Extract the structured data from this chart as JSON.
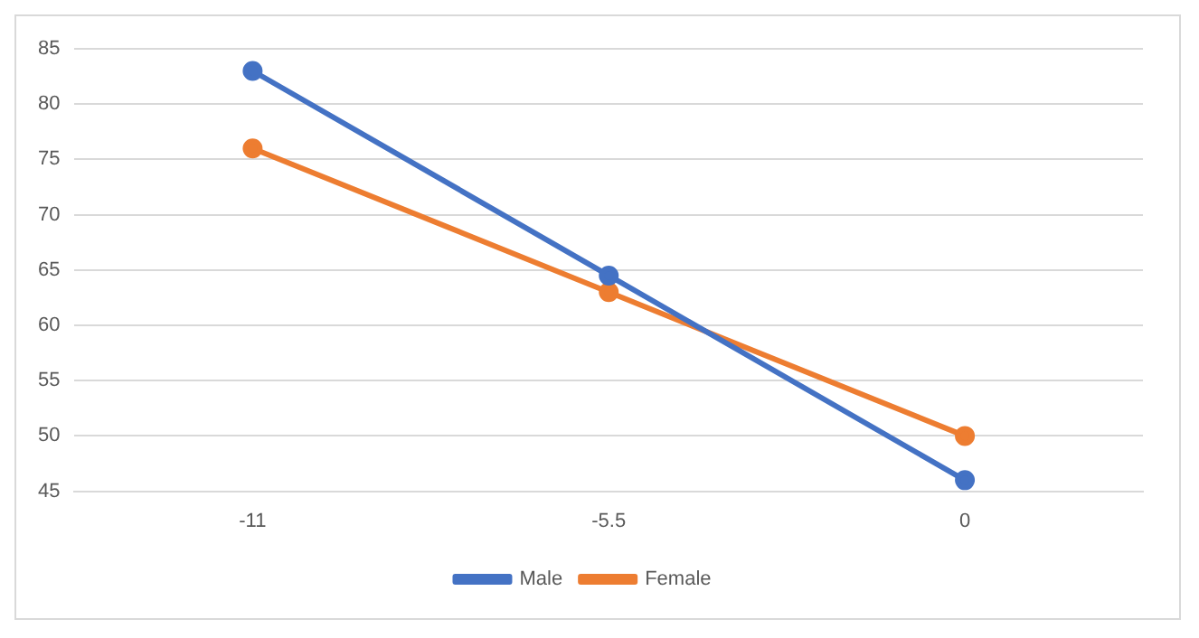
{
  "chart_data": {
    "type": "line",
    "categories": [
      "-11",
      "-5.5",
      "0"
    ],
    "series": [
      {
        "name": "Male",
        "color": "#4472c4",
        "values": [
          83,
          64.5,
          46
        ]
      },
      {
        "name": "Female",
        "color": "#ed7d31",
        "values": [
          76,
          63,
          50
        ]
      }
    ],
    "ylim": [
      45,
      85
    ],
    "yticks": [
      45,
      50,
      55,
      60,
      65,
      70,
      75,
      80,
      85
    ],
    "grid": "y",
    "legend": "bottom",
    "marker": "circle",
    "line_style": "solid"
  }
}
